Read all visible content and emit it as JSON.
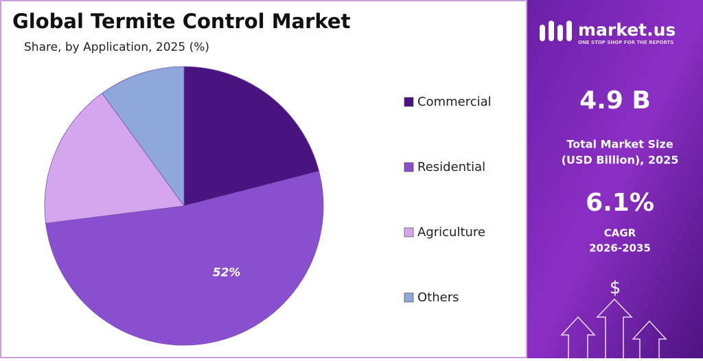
{
  "chart_data": {
    "type": "pie",
    "title": "Global Termite Control Market",
    "subtitle": "Share, by Application, 2025 (%)",
    "categories": [
      "Commercial",
      "Residential",
      "Agriculture",
      "Others"
    ],
    "values": [
      21,
      52,
      17,
      10
    ],
    "value_labels": [
      null,
      "52%",
      null,
      null
    ],
    "colors": [
      "#4a1480",
      "#8a4fcf",
      "#d3a6ee",
      "#8fa8dc"
    ],
    "legend": "right"
  },
  "panel": {
    "brand": "market.us",
    "tagline": "ONE STOP SHOP FOR THE REPORTS",
    "market_size": "4.9 B",
    "market_size_label": [
      "Total Market Size",
      "(USD Billion), 2025"
    ],
    "cagr": "6.1%",
    "cagr_label": [
      "CAGR",
      "2026-2035"
    ],
    "icon": "$"
  }
}
